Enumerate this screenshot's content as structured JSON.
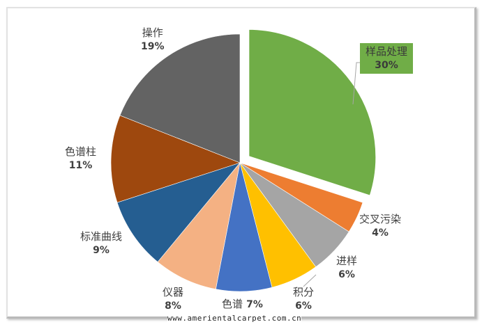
{
  "chart_data": {
    "type": "pie",
    "title": "",
    "exploded": "样品处理",
    "start_angle_deg": 0,
    "direction": "clockwise",
    "slices": [
      {
        "label": "样品处理",
        "value": 30,
        "pct": "30%",
        "color": "#70ad47"
      },
      {
        "label": "交叉污染",
        "value": 4,
        "pct": "4%",
        "color": "#ed7d31"
      },
      {
        "label": "进样",
        "value": 6,
        "pct": "6%",
        "color": "#a5a5a5"
      },
      {
        "label": "积分",
        "value": 6,
        "pct": "6%",
        "color": "#ffc000"
      },
      {
        "label": "色谱",
        "value": 7,
        "pct": "7%",
        "color": "#4472c4"
      },
      {
        "label": "仪器",
        "value": 8,
        "pct": "8%",
        "color": "#f4b183"
      },
      {
        "label": "标准曲线",
        "value": 9,
        "pct": "9%",
        "color": "#255e91"
      },
      {
        "label": "色谱柱",
        "value": 11,
        "pct": "11%",
        "color": "#9e480e"
      },
      {
        "label": "操作",
        "value": 19,
        "pct": "19%",
        "color": "#636363"
      }
    ]
  },
  "labels": {
    "l0": {
      "name": "样品处理",
      "pct": "30%"
    },
    "l1": {
      "name": "交叉污染",
      "pct": "4%"
    },
    "l2": {
      "name": "进样",
      "pct": "6%"
    },
    "l3": {
      "name": "积分",
      "pct": "6%"
    },
    "l4": {
      "name": "色谱",
      "pct": "7%"
    },
    "l5": {
      "name": "仪器",
      "pct": "8%"
    },
    "l6": {
      "name": "标准曲线",
      "pct": "9%"
    },
    "l7": {
      "name": "色谱柱",
      "pct": "11%"
    },
    "l8": {
      "name": "操作",
      "pct": "19%"
    }
  },
  "watermark": "www.amerientalcarpet.com.cn"
}
